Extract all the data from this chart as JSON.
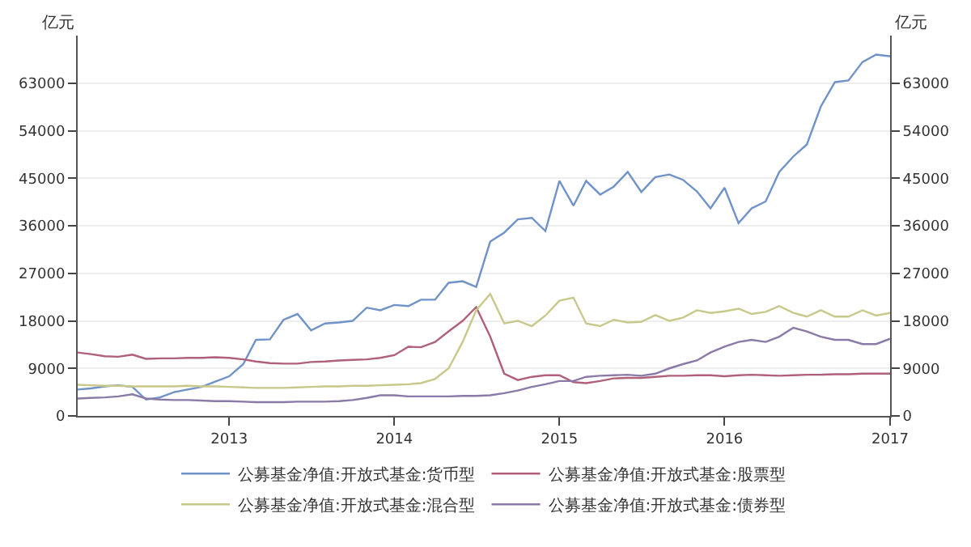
{
  "chart_data": {
    "type": "line",
    "ylabel": "亿元",
    "y2label": "亿元",
    "x": [
      "2012-02",
      "2012-03",
      "2012-04",
      "2012-05",
      "2012-06",
      "2012-07",
      "2012-08",
      "2012-09",
      "2012-10",
      "2012-11",
      "2012-12",
      "2013-01",
      "2013-02",
      "2013-03",
      "2013-04",
      "2013-05",
      "2013-06",
      "2013-07",
      "2013-08",
      "2013-09",
      "2013-10",
      "2013-11",
      "2013-12",
      "2014-01",
      "2014-02",
      "2014-03",
      "2014-04",
      "2014-05",
      "2014-06",
      "2014-07",
      "2014-08",
      "2014-09",
      "2014-10",
      "2014-11",
      "2014-12",
      "2015-01",
      "2015-02",
      "2015-03",
      "2015-04",
      "2015-05",
      "2015-06",
      "2015-07",
      "2015-08",
      "2015-09",
      "2015-10",
      "2015-11",
      "2015-12",
      "2016-01",
      "2016-02",
      "2016-03",
      "2016-04",
      "2016-05",
      "2016-06",
      "2016-07",
      "2016-08",
      "2016-09",
      "2016-10",
      "2016-11",
      "2016-12",
      "2017-01"
    ],
    "series": [
      {
        "name": "公募基金净值:开放式基金:货币型",
        "color": "#6f93c8",
        "values": [
          5000,
          5200,
          5600,
          5800,
          5500,
          3100,
          3500,
          4500,
          5000,
          5500,
          6500,
          7500,
          9800,
          14400,
          14500,
          18200,
          19300,
          16200,
          17500,
          17700,
          18000,
          20500,
          20000,
          21000,
          20800,
          22000,
          22000,
          25200,
          25500,
          24400,
          33000,
          34700,
          37200,
          37500,
          35000,
          44500,
          39800,
          44500,
          41900,
          43400,
          46200,
          42400,
          45200,
          45700,
          44700,
          42500,
          39300,
          43200,
          36500,
          39300,
          40600,
          46200,
          49100,
          51400,
          58600,
          63200,
          63500,
          67000,
          68400,
          68100
        ]
      },
      {
        "name": "公募基金净值:开放式基金:股票型",
        "color": "#b0607a",
        "values": [
          12000,
          11700,
          11300,
          11200,
          11600,
          10800,
          10900,
          10900,
          11000,
          11000,
          11100,
          11000,
          10700,
          10300,
          10000,
          9900,
          9900,
          10200,
          10300,
          10500,
          10600,
          10700,
          11000,
          11500,
          13100,
          13000,
          14000,
          16000,
          18000,
          20600,
          15000,
          8000,
          6800,
          7400,
          7700,
          7700,
          6400,
          6200,
          6600,
          7100,
          7200,
          7200,
          7400,
          7600,
          7600,
          7700,
          7700,
          7500,
          7700,
          7800,
          7700,
          7600,
          7700,
          7800,
          7800,
          7900,
          7900,
          8000,
          8000,
          8000
        ]
      },
      {
        "name": "公募基金净值:开放式基金:混合型",
        "color": "#c8c88a",
        "values": [
          5900,
          5800,
          5700,
          5700,
          5600,
          5600,
          5600,
          5600,
          5700,
          5600,
          5600,
          5500,
          5400,
          5300,
          5300,
          5300,
          5400,
          5500,
          5600,
          5600,
          5700,
          5700,
          5800,
          5900,
          6000,
          6200,
          7000,
          9000,
          14000,
          20000,
          23100,
          17500,
          18000,
          17000,
          19000,
          21800,
          22400,
          17500,
          17000,
          18200,
          17700,
          17800,
          19100,
          18000,
          18600,
          20000,
          19500,
          19800,
          20300,
          19300,
          19700,
          20800,
          19500,
          18800,
          20000,
          18800,
          18800,
          20000,
          19000,
          19500
        ]
      },
      {
        "name": "公募基金净值:开放式基金:债券型",
        "color": "#8a7aa8",
        "values": [
          3300,
          3400,
          3500,
          3700,
          4100,
          3300,
          3100,
          3000,
          3000,
          2900,
          2800,
          2800,
          2700,
          2600,
          2600,
          2600,
          2700,
          2700,
          2700,
          2800,
          3000,
          3400,
          3900,
          3900,
          3700,
          3700,
          3700,
          3700,
          3800,
          3800,
          3900,
          4300,
          4800,
          5500,
          6000,
          6600,
          6600,
          7400,
          7600,
          7700,
          7800,
          7600,
          8000,
          9000,
          9800,
          10500,
          12000,
          13100,
          14000,
          14400,
          14000,
          15000,
          16700,
          16000,
          15000,
          14400,
          14400,
          13600,
          13600,
          14600
        ]
      }
    ],
    "xlim": [
      "2012-02",
      "2017-01"
    ],
    "xticks": [
      "2013",
      "2014",
      "2015",
      "2016",
      "2017"
    ],
    "ylim": [
      0,
      72000
    ],
    "yticks": [
      0,
      9000,
      18000,
      27000,
      36000,
      45000,
      54000,
      63000
    ],
    "y2lim": [
      0,
      72000
    ],
    "y2ticks": [
      0,
      9000,
      18000,
      27000,
      36000,
      45000,
      54000,
      63000
    ],
    "grid": "y",
    "legend": "bottom",
    "marker": "none",
    "line_style": "solid"
  }
}
